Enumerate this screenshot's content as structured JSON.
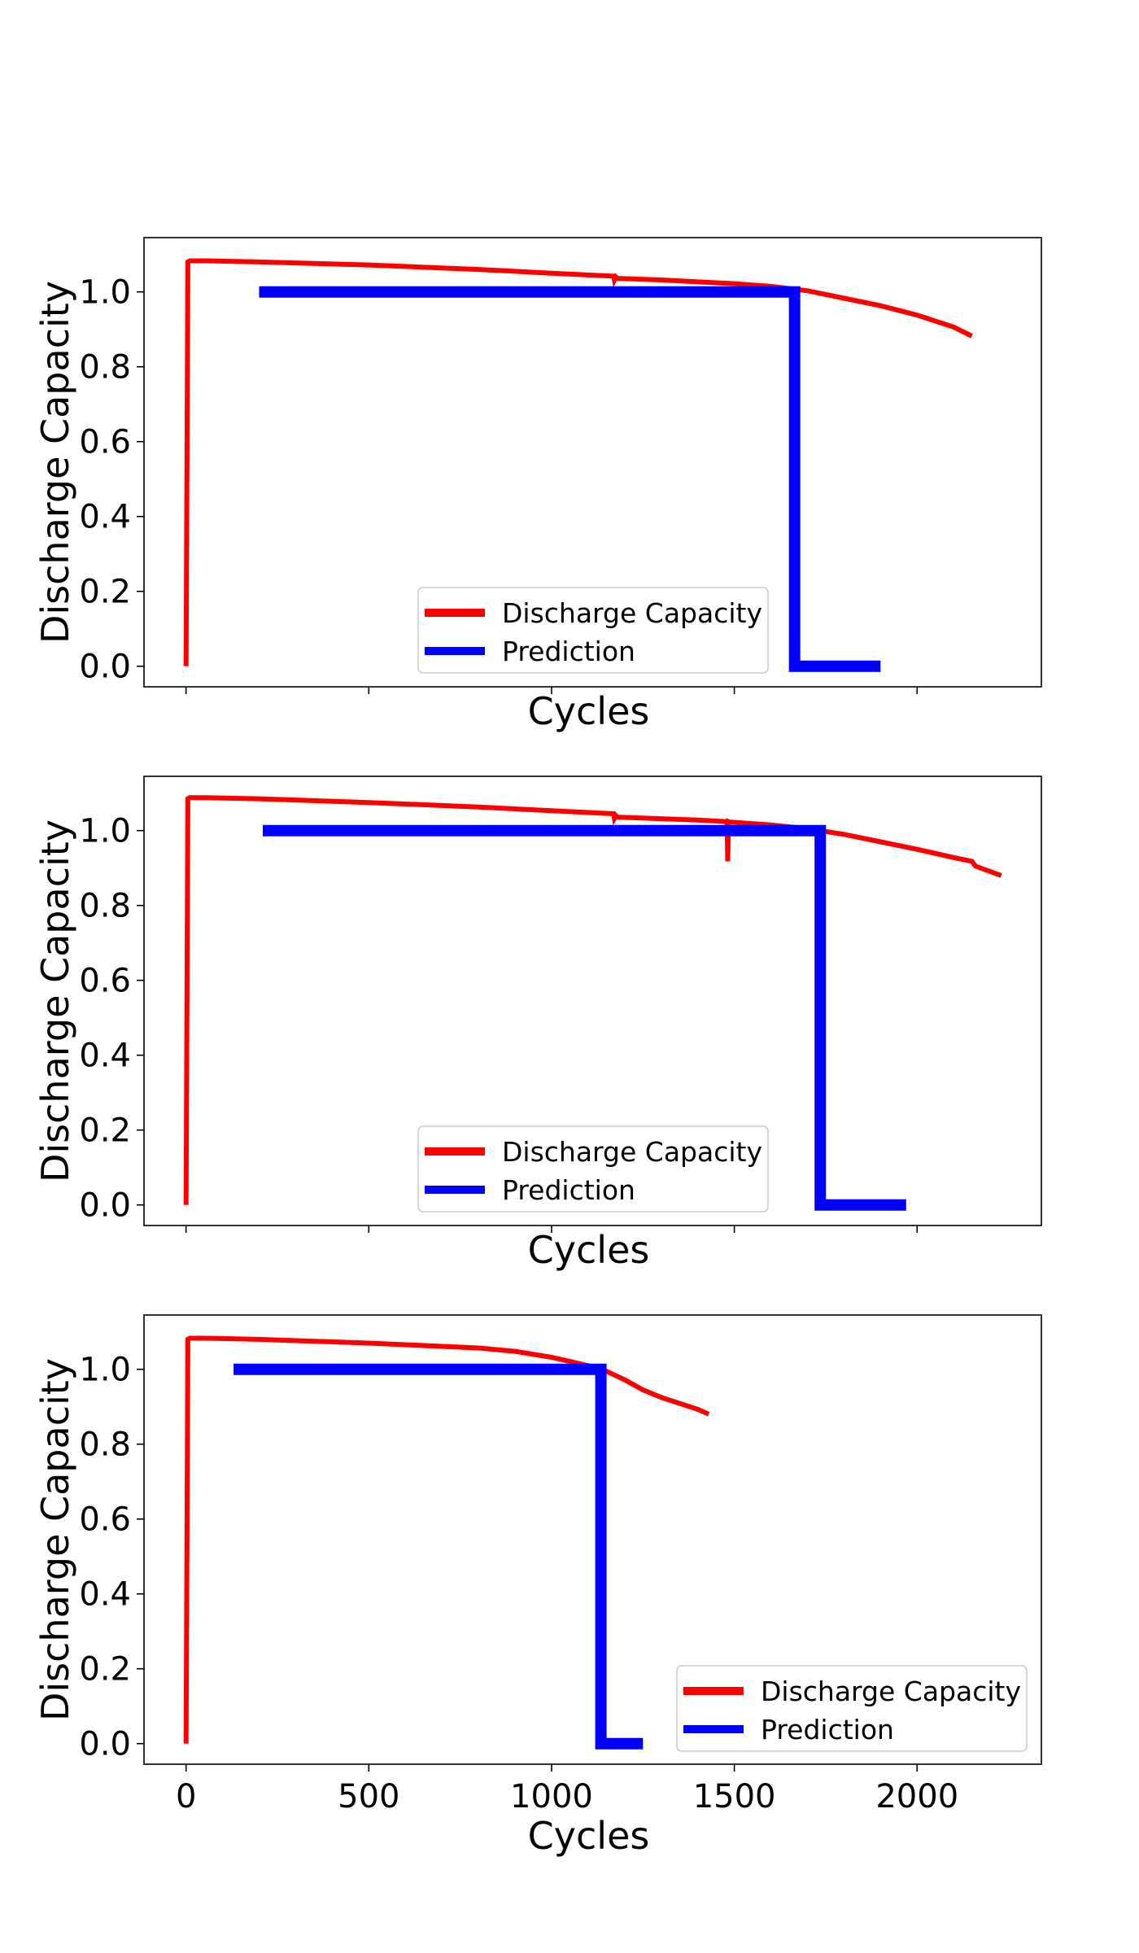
{
  "colors": {
    "discharge": "#ff0000",
    "prediction": "#0000ff",
    "axes": "#000000",
    "legend_border": "#cccccc"
  },
  "chart_data": [
    {
      "type": "line",
      "xlabel": "Cycles",
      "ylabel": "Discharge Capacity",
      "xlim": [
        -115,
        2340
      ],
      "ylim": [
        -0.055,
        1.145
      ],
      "x_ticks": [
        0,
        500,
        1000,
        1500,
        2000
      ],
      "x_tick_labels_visible": false,
      "y_ticks": [
        0.0,
        0.2,
        0.4,
        0.6,
        0.8,
        1.0
      ],
      "y_tick_labels": [
        "0.0",
        "0.2",
        "0.4",
        "0.6",
        "0.8",
        "1.0"
      ],
      "legend_position": "lower center",
      "series": [
        {
          "name": "Discharge Capacity",
          "color": "#ff0000",
          "x": [
            0,
            5,
            10,
            50,
            200,
            500,
            800,
            1000,
            1170,
            1172,
            1176,
            1180,
            1300,
            1500,
            1600,
            1700,
            1800,
            1900,
            2000,
            2100,
            2150
          ],
          "y": [
            0.0,
            1.08,
            1.083,
            1.083,
            1.08,
            1.072,
            1.06,
            1.05,
            1.042,
            1.032,
            1.04,
            1.036,
            1.032,
            1.022,
            1.015,
            1.003,
            0.983,
            0.963,
            0.938,
            0.906,
            0.882
          ]
        },
        {
          "name": "Prediction",
          "color": "#0000ff",
          "x": [
            200,
            1665,
            1665,
            1900
          ],
          "y": [
            1.0,
            1.0,
            0.0,
            0.0
          ]
        }
      ]
    },
    {
      "type": "line",
      "xlabel": "Cycles",
      "ylabel": "Discharge Capacity",
      "xlim": [
        -115,
        2340
      ],
      "ylim": [
        -0.055,
        1.145
      ],
      "x_ticks": [
        0,
        500,
        1000,
        1500,
        2000
      ],
      "x_tick_labels_visible": false,
      "y_ticks": [
        0.0,
        0.2,
        0.4,
        0.6,
        0.8,
        1.0
      ],
      "y_tick_labels": [
        "0.0",
        "0.2",
        "0.4",
        "0.6",
        "0.8",
        "1.0"
      ],
      "legend_position": "lower center",
      "series": [
        {
          "name": "Discharge Capacity",
          "color": "#ff0000",
          "x": [
            0,
            5,
            10,
            50,
            200,
            500,
            800,
            1000,
            1170,
            1172,
            1176,
            1180,
            1400,
            1480,
            1482,
            1484,
            1486,
            1600,
            1700,
            1800,
            1900,
            2000,
            2100,
            2150,
            2160,
            2230
          ],
          "y": [
            0.0,
            1.085,
            1.088,
            1.088,
            1.085,
            1.075,
            1.063,
            1.053,
            1.045,
            1.033,
            1.04,
            1.036,
            1.028,
            1.024,
            0.918,
            1.024,
            1.023,
            1.015,
            1.005,
            0.99,
            0.97,
            0.95,
            0.928,
            0.918,
            0.905,
            0.88
          ]
        },
        {
          "name": "Prediction",
          "color": "#0000ff",
          "x": [
            210,
            1735,
            1735,
            1970
          ],
          "y": [
            1.0,
            1.0,
            0.0,
            0.0
          ]
        }
      ]
    },
    {
      "type": "line",
      "xlabel": "Cycles",
      "ylabel": "Discharge Capacity",
      "xlim": [
        -115,
        2340
      ],
      "ylim": [
        -0.055,
        1.145
      ],
      "x_ticks": [
        0,
        500,
        1000,
        1500,
        2000
      ],
      "x_tick_labels": [
        "0",
        "500",
        "1000",
        "1500",
        "2000"
      ],
      "x_tick_labels_visible": true,
      "y_ticks": [
        0.0,
        0.2,
        0.4,
        0.6,
        0.8,
        1.0
      ],
      "y_tick_labels": [
        "0.0",
        "0.2",
        "0.4",
        "0.6",
        "0.8",
        "1.0"
      ],
      "legend_position": "lower right",
      "series": [
        {
          "name": "Discharge Capacity",
          "color": "#ff0000",
          "x": [
            0,
            5,
            10,
            50,
            200,
            500,
            800,
            900,
            1000,
            1100,
            1150,
            1200,
            1250,
            1300,
            1400,
            1430
          ],
          "y": [
            0.0,
            1.08,
            1.083,
            1.083,
            1.08,
            1.07,
            1.057,
            1.048,
            1.032,
            1.01,
            0.995,
            0.972,
            0.945,
            0.925,
            0.893,
            0.88
          ]
        },
        {
          "name": "Prediction",
          "color": "#0000ff",
          "x": [
            130,
            1135,
            1135,
            1250
          ],
          "y": [
            1.0,
            1.0,
            0.0,
            0.0
          ]
        }
      ]
    }
  ]
}
